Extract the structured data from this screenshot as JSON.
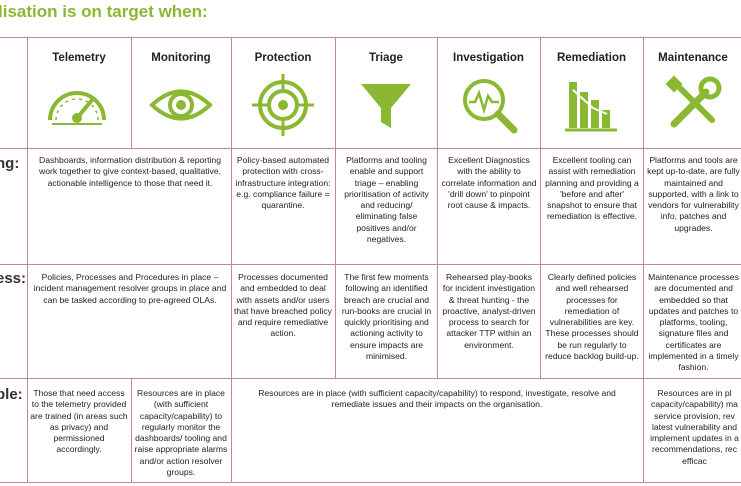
{
  "title": "lisation is on target when:",
  "accent_color": "#8ab833",
  "columns": [
    {
      "label": "Telemetry",
      "icon": "speedometer-icon"
    },
    {
      "label": "Monitoring",
      "icon": "eye-icon"
    },
    {
      "label": "Protection",
      "icon": "target-icon"
    },
    {
      "label": "Triage",
      "icon": "funnel-icon"
    },
    {
      "label": "Investigation",
      "icon": "magnifier-waveform-icon"
    },
    {
      "label": "Remediation",
      "icon": "bar-chart-icon"
    },
    {
      "label": "Maintenance",
      "icon": "wrench-screwdriver-icon"
    }
  ],
  "rows": [
    {
      "label": "ng:"
    },
    {
      "label": "ess:"
    },
    {
      "label": "ple:"
    }
  ],
  "cells": {
    "technology_telemetry_monitoring": "Dashboards, information distribution & reporting work together to give context-based, qualitative, actionable intelligence to those that need it.",
    "technology_protection": "Policy-based automated protection with cross-infrastructure integration: e.g. compliance failure = quarantine.",
    "technology_triage": "Platforms and tooling enable and support triage – enabling prioritisation of activity and reducing/ eliminating false positives and/or negatives.",
    "technology_investigation": "Excellent Diagnostics with the ability to correlate information and 'drill down' to pinpoint root cause & impacts.",
    "technology_remediation": "Excellent tooling can assist with remediation planning and providing a 'before and after' snapshot to ensure that remediation is effective.",
    "technology_maintenance": "Platforms and tools are kept up-to-date, are fully maintained and supported, with a link to vendors for vulnerability info, patches and upgrades.",
    "process_telemetry_monitoring": "Policies, Processes and Procedures in place – incident management resolver groups in place and can be tasked according to pre-agreed OLAs.",
    "process_protection": "Processes documented and embedded to deal with assets and/or users that have breached policy and require remediative action.",
    "process_triage": "The first few moments following an identified breach are crucial and run-books are crucial in quickly prioritising and actioning activity to ensure impacts are minimised.",
    "process_investigation": "Rehearsed play-books for incident investigation & threat hunting - the proactive, analyst-driven process to search for attacker TTP within an environment.",
    "process_remediation": "Clearly defined policies and well rehearsed processes for remediation of vulnerabilities are key. These processes should be run regularly to reduce backlog build-up.",
    "process_maintenance": "Maintenance processes are documented and embedded so that updates and patches to platforms, tooling, signature files and certificates are implemented in a timely fashion.",
    "people_telemetry": "Those that need access to the telemetry provided are trained (in areas such as privacy) and permissioned accordingly.",
    "people_monitoring": "Resources are in place (with sufficient capacity/capability) to regularly monitor the dashboards/ tooling and raise appropriate alarms and/or action resolver groups.",
    "people_protection_to_remediation": "Resources are in place (with sufficient capacity/capability) to respond, investigate, resolve and remediate issues and their impacts on the organisation.",
    "people_maintenance": "Resources are in pl capacity/capability) ma service provision, rev latest vulnerability and implement updates in a recommendations, rec efficac"
  }
}
